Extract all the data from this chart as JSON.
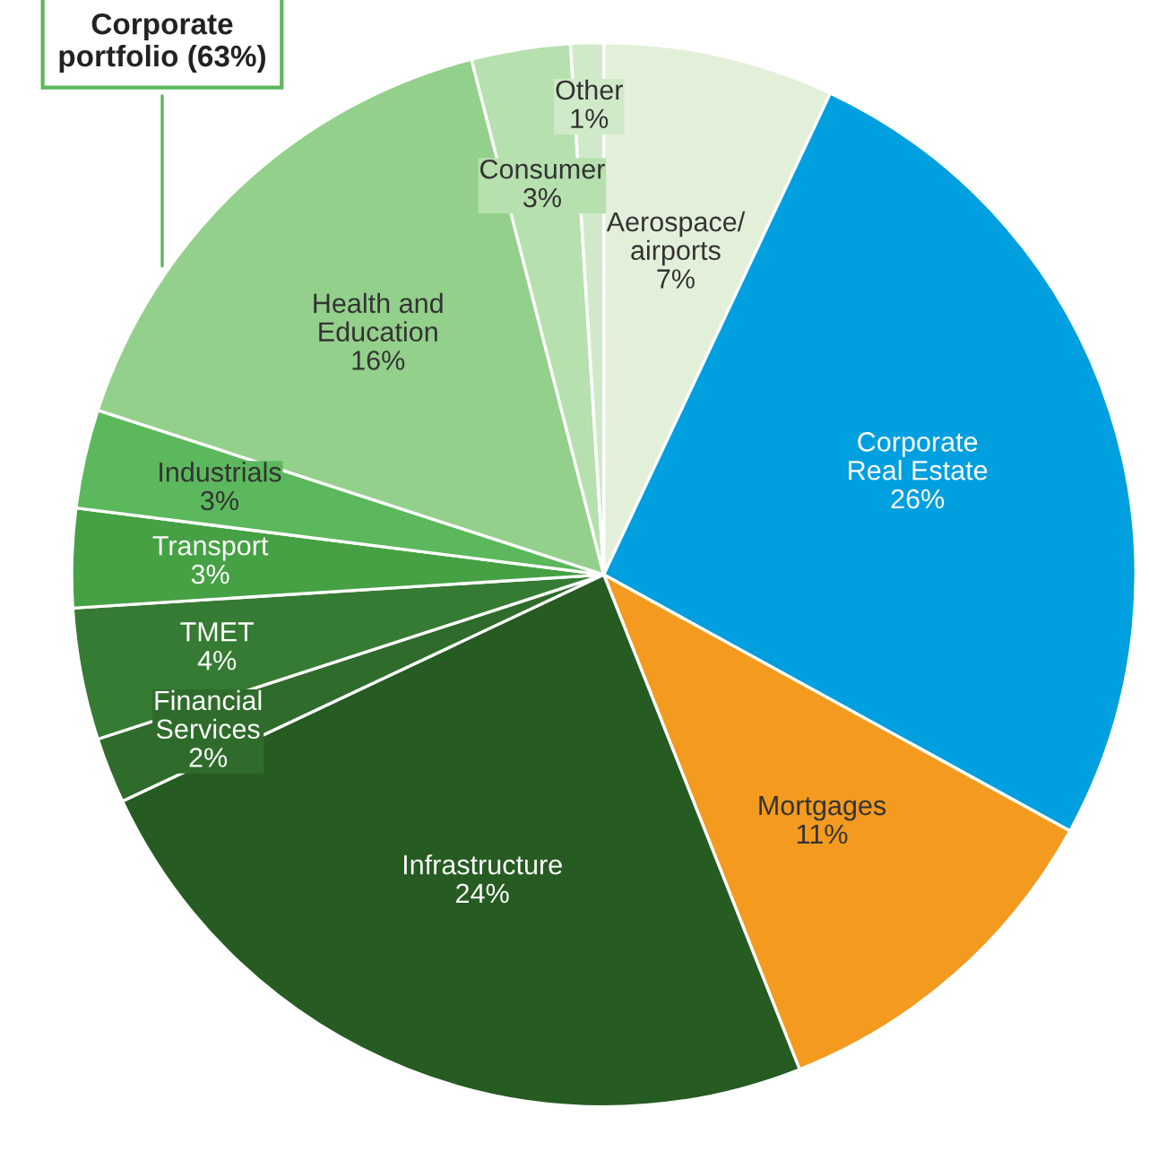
{
  "chart_data": {
    "type": "pie",
    "categories": [
      "Aerospace/\nairports",
      "Corporate\nReal Estate",
      "Mortgages",
      "Infrastructure",
      "Financial\nServices",
      "TMET",
      "Transport",
      "Industrials",
      "Health and\nEducation",
      "Consumer",
      "Other"
    ],
    "values": [
      7,
      26,
      11,
      24,
      2,
      4,
      3,
      3,
      16,
      3,
      1
    ],
    "colors": [
      "#e2f0d9",
      "#009fdf",
      "#f39a1f",
      "#265b22",
      "#2f6c2b",
      "#367b33",
      "#46a144",
      "#5cb85c",
      "#93d08b",
      "#b6e0ae",
      "#d0eac9"
    ],
    "value_labels": [
      "7%",
      "26%",
      "11%",
      "24%",
      "2%",
      "4%",
      "3%",
      "3%",
      "16%",
      "3%",
      "1%"
    ],
    "annotations": [
      "Corporate portfolio (63%)"
    ]
  }
}
